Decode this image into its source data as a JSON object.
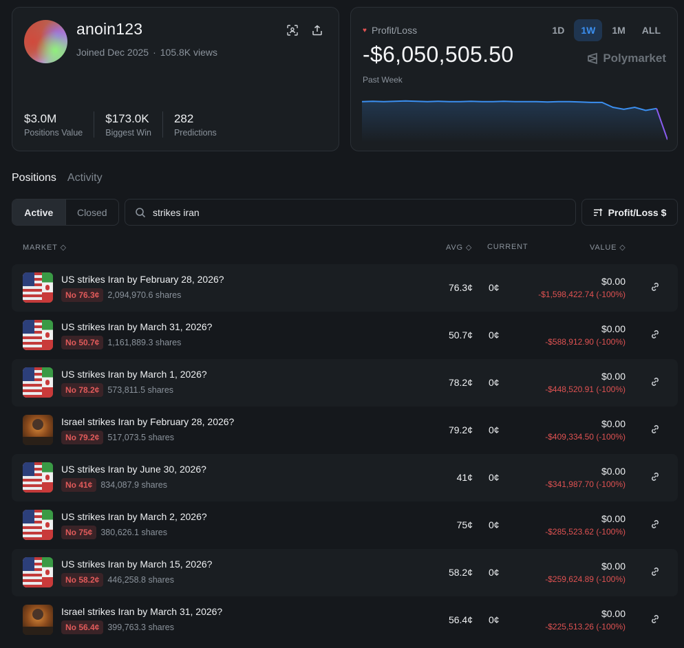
{
  "profile": {
    "username": "anoin123",
    "joined": "Joined Dec 2025",
    "separator": "·",
    "views": "105.8K views",
    "stats": [
      {
        "value": "$3.0M",
        "label": "Positions Value"
      },
      {
        "value": "$173.0K",
        "label": "Biggest Win"
      },
      {
        "value": "282",
        "label": "Predictions"
      }
    ]
  },
  "pnl": {
    "label": "Profit/Loss",
    "value": "-$6,050,505.50",
    "period": "Past Week",
    "brand": "Polymarket",
    "ranges": [
      "1D",
      "1W",
      "1M",
      "ALL"
    ],
    "active_range": "1W",
    "line_color": "#3b8ff0",
    "series": [
      0.0,
      0.01,
      0.0,
      0.01,
      0.02,
      0.01,
      0.0,
      0.01,
      0.0,
      0.0,
      0.01,
      0.0,
      0.0,
      0.01,
      0.0,
      0.0,
      0.0,
      -0.01,
      0.0,
      0.0,
      -0.01,
      -0.02,
      -0.02,
      -0.15,
      -0.2,
      -0.15,
      -0.23,
      -0.18,
      -1.0
    ]
  },
  "tabs": {
    "positions": "Positions",
    "activity": "Activity"
  },
  "filter": {
    "active": "Active",
    "closed": "Closed"
  },
  "search": {
    "value": "strikes iran"
  },
  "sort": {
    "label": "Profit/Loss $"
  },
  "table": {
    "headers": {
      "market": "MARKET",
      "avg": "AVG",
      "current": "CURRENT",
      "value": "VALUE"
    },
    "rows": [
      {
        "title": "US strikes Iran by February 28, 2026?",
        "image": "us-iran",
        "badge": "No 76.3¢",
        "shares": "2,094,970.6 shares",
        "avg": "76.3¢",
        "current": "0¢",
        "value": "$0.00",
        "pnl": "-$1,598,422.74 (-100%)"
      },
      {
        "title": "US strikes Iran by March 31, 2026?",
        "image": "us-iran",
        "badge": "No 50.7¢",
        "shares": "1,161,889.3 shares",
        "avg": "50.7¢",
        "current": "0¢",
        "value": "$0.00",
        "pnl": "-$588,912.90 (-100%)"
      },
      {
        "title": "US strikes Iran by March 1, 2026?",
        "image": "us-iran",
        "badge": "No 78.2¢",
        "shares": "573,811.5 shares",
        "avg": "78.2¢",
        "current": "0¢",
        "value": "$0.00",
        "pnl": "-$448,520.91 (-100%)"
      },
      {
        "title": "Israel strikes Iran by February 28, 2026?",
        "image": "israel-iran",
        "badge": "No 79.2¢",
        "shares": "517,073.5 shares",
        "avg": "79.2¢",
        "current": "0¢",
        "value": "$0.00",
        "pnl": "-$409,334.50 (-100%)"
      },
      {
        "title": "US strikes Iran by June 30, 2026?",
        "image": "us-iran",
        "badge": "No 41¢",
        "shares": "834,087.9 shares",
        "avg": "41¢",
        "current": "0¢",
        "value": "$0.00",
        "pnl": "-$341,987.70 (-100%)"
      },
      {
        "title": "US strikes Iran by March 2, 2026?",
        "image": "us-iran",
        "badge": "No 75¢",
        "shares": "380,626.1 shares",
        "avg": "75¢",
        "current": "0¢",
        "value": "$0.00",
        "pnl": "-$285,523.62 (-100%)"
      },
      {
        "title": "US strikes Iran by March 15, 2026?",
        "image": "us-iran",
        "badge": "No 58.2¢",
        "shares": "446,258.8 shares",
        "avg": "58.2¢",
        "current": "0¢",
        "value": "$0.00",
        "pnl": "-$259,624.89 (-100%)"
      },
      {
        "title": "Israel strikes Iran by March 31, 2026?",
        "image": "israel-iran",
        "badge": "No 56.4¢",
        "shares": "399,763.3 shares",
        "avg": "56.4¢",
        "current": "0¢",
        "value": "$0.00",
        "pnl": "-$225,513.26 (-100%)"
      }
    ]
  }
}
